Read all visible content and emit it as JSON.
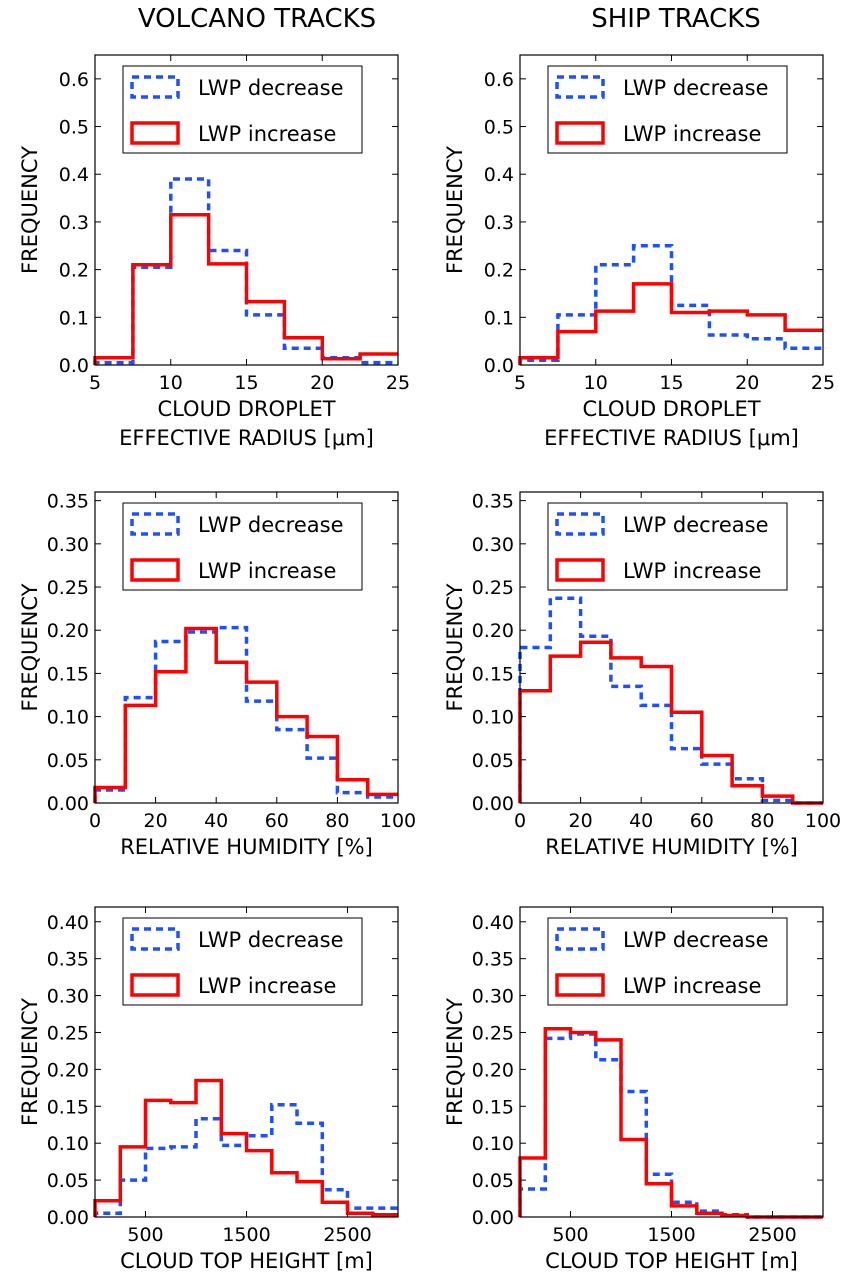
{
  "columns": [
    "VOLCANO TRACKS",
    "SHIP TRACKS"
  ],
  "colors": {
    "decrease": "#1f50ff",
    "increase": "#ff0000"
  },
  "legend": {
    "decrease": "LWP decrease",
    "increase": "LWP increase",
    "placement": "upper-center"
  },
  "chart_data": [
    {
      "type": "histogram",
      "panel": "volcano-radius",
      "xlabel": [
        "CLOUD DROPLET",
        "EFFECTIVE RADIUS [μm]"
      ],
      "ylabel": "FREQUENCY",
      "xlim": [
        5,
        25
      ],
      "ylim": [
        0,
        0.65
      ],
      "xticks": [
        5,
        10,
        15,
        20,
        25
      ],
      "yticks": [
        0.0,
        0.1,
        0.2,
        0.3,
        0.4,
        0.5,
        0.6
      ],
      "ydecimals": 1,
      "bin_edges": [
        5,
        7.5,
        10,
        12.5,
        15,
        17.5,
        20,
        22.5,
        25
      ],
      "series": [
        {
          "name": "LWP decrease",
          "key": "decrease",
          "values": [
            0.005,
            0.205,
            0.39,
            0.24,
            0.105,
            0.035,
            0.015,
            0.005
          ]
        },
        {
          "name": "LWP increase",
          "key": "increase",
          "values": [
            0.015,
            0.21,
            0.315,
            0.212,
            0.133,
            0.057,
            0.013,
            0.023
          ]
        }
      ]
    },
    {
      "type": "histogram",
      "panel": "ship-radius",
      "xlabel": [
        "CLOUD DROPLET",
        "EFFECTIVE RADIUS [μm]"
      ],
      "ylabel": "FREQUENCY",
      "xlim": [
        5,
        25
      ],
      "ylim": [
        0,
        0.65
      ],
      "xticks": [
        5,
        10,
        15,
        20,
        25
      ],
      "yticks": [
        0.0,
        0.1,
        0.2,
        0.3,
        0.4,
        0.5,
        0.6
      ],
      "ydecimals": 1,
      "bin_edges": [
        5,
        7.5,
        10,
        12.5,
        15,
        17.5,
        20,
        22.5,
        25
      ],
      "series": [
        {
          "name": "LWP decrease",
          "key": "decrease",
          "values": [
            0.01,
            0.105,
            0.21,
            0.25,
            0.125,
            0.063,
            0.055,
            0.035
          ]
        },
        {
          "name": "LWP increase",
          "key": "increase",
          "values": [
            0.015,
            0.07,
            0.113,
            0.17,
            0.11,
            0.113,
            0.105,
            0.073
          ]
        }
      ]
    },
    {
      "type": "histogram",
      "panel": "volcano-humidity",
      "xlabel": [
        "RELATIVE HUMIDITY [%]"
      ],
      "ylabel": "FREQUENCY",
      "xlim": [
        0,
        100
      ],
      "ylim": [
        0,
        0.36
      ],
      "xticks": [
        0,
        20,
        40,
        60,
        80,
        100
      ],
      "yticks": [
        0.0,
        0.05,
        0.1,
        0.15,
        0.2,
        0.25,
        0.3,
        0.35
      ],
      "ydecimals": 2,
      "bin_edges": [
        0,
        10,
        20,
        30,
        40,
        50,
        60,
        70,
        80,
        90,
        100
      ],
      "series": [
        {
          "name": "LWP decrease",
          "key": "decrease",
          "values": [
            0.015,
            0.122,
            0.187,
            0.198,
            0.203,
            0.118,
            0.085,
            0.052,
            0.012,
            0.007
          ]
        },
        {
          "name": "LWP increase",
          "key": "increase",
          "values": [
            0.018,
            0.113,
            0.152,
            0.202,
            0.163,
            0.14,
            0.1,
            0.077,
            0.027,
            0.01
          ]
        }
      ]
    },
    {
      "type": "histogram",
      "panel": "ship-humidity",
      "xlabel": [
        "RELATIVE HUMIDITY [%]"
      ],
      "ylabel": "FREQUENCY",
      "xlim": [
        0,
        100
      ],
      "ylim": [
        0,
        0.36
      ],
      "xticks": [
        0,
        20,
        40,
        60,
        80,
        100
      ],
      "yticks": [
        0.0,
        0.05,
        0.1,
        0.15,
        0.2,
        0.25,
        0.3,
        0.35
      ],
      "ydecimals": 2,
      "bin_edges": [
        0,
        10,
        20,
        30,
        40,
        50,
        60,
        70,
        80,
        90,
        100
      ],
      "series": [
        {
          "name": "LWP decrease",
          "key": "decrease",
          "values": [
            0.18,
            0.237,
            0.193,
            0.135,
            0.113,
            0.063,
            0.045,
            0.028,
            0.003,
            0.0
          ]
        },
        {
          "name": "LWP increase",
          "key": "increase",
          "values": [
            0.13,
            0.17,
            0.186,
            0.168,
            0.158,
            0.105,
            0.055,
            0.02,
            0.008,
            0.0
          ]
        }
      ]
    },
    {
      "type": "histogram",
      "panel": "volcano-height",
      "xlabel": [
        "CLOUD TOP HEIGHT [m]"
      ],
      "ylabel": "FREQUENCY",
      "xlim": [
        0,
        3000
      ],
      "ylim": [
        0,
        0.42
      ],
      "xticks": [
        500,
        1500,
        2500
      ],
      "yticks": [
        0.0,
        0.05,
        0.1,
        0.15,
        0.2,
        0.25,
        0.3,
        0.35,
        0.4
      ],
      "ydecimals": 2,
      "bin_edges": [
        0,
        250,
        500,
        750,
        1000,
        1250,
        1500,
        1750,
        2000,
        2250,
        2500,
        2750,
        3000
      ],
      "series": [
        {
          "name": "LWP decrease",
          "key": "decrease",
          "values": [
            0.005,
            0.05,
            0.093,
            0.095,
            0.133,
            0.097,
            0.11,
            0.152,
            0.127,
            0.037,
            0.012,
            0.012
          ]
        },
        {
          "name": "LWP increase",
          "key": "increase",
          "values": [
            0.022,
            0.095,
            0.158,
            0.155,
            0.185,
            0.113,
            0.09,
            0.06,
            0.048,
            0.02,
            0.005,
            0.003
          ]
        }
      ]
    },
    {
      "type": "histogram",
      "panel": "ship-height",
      "xlabel": [
        "CLOUD TOP HEIGHT [m]"
      ],
      "ylabel": "FREQUENCY",
      "xlim": [
        0,
        3000
      ],
      "ylim": [
        0,
        0.42
      ],
      "xticks": [
        500,
        1500,
        2500
      ],
      "yticks": [
        0.0,
        0.05,
        0.1,
        0.15,
        0.2,
        0.25,
        0.3,
        0.35,
        0.4
      ],
      "ydecimals": 2,
      "bin_edges": [
        0,
        250,
        500,
        750,
        1000,
        1250,
        1500,
        1750,
        2000,
        2250,
        2500,
        2750,
        3000
      ],
      "series": [
        {
          "name": "LWP decrease",
          "key": "decrease",
          "values": [
            0.038,
            0.242,
            0.248,
            0.213,
            0.17,
            0.058,
            0.02,
            0.008,
            0.003,
            0.0,
            0.0,
            0.0
          ]
        },
        {
          "name": "LWP increase",
          "key": "increase",
          "values": [
            0.08,
            0.255,
            0.25,
            0.24,
            0.105,
            0.045,
            0.015,
            0.005,
            0.002,
            0.0,
            0.0,
            0.0
          ]
        }
      ]
    }
  ]
}
